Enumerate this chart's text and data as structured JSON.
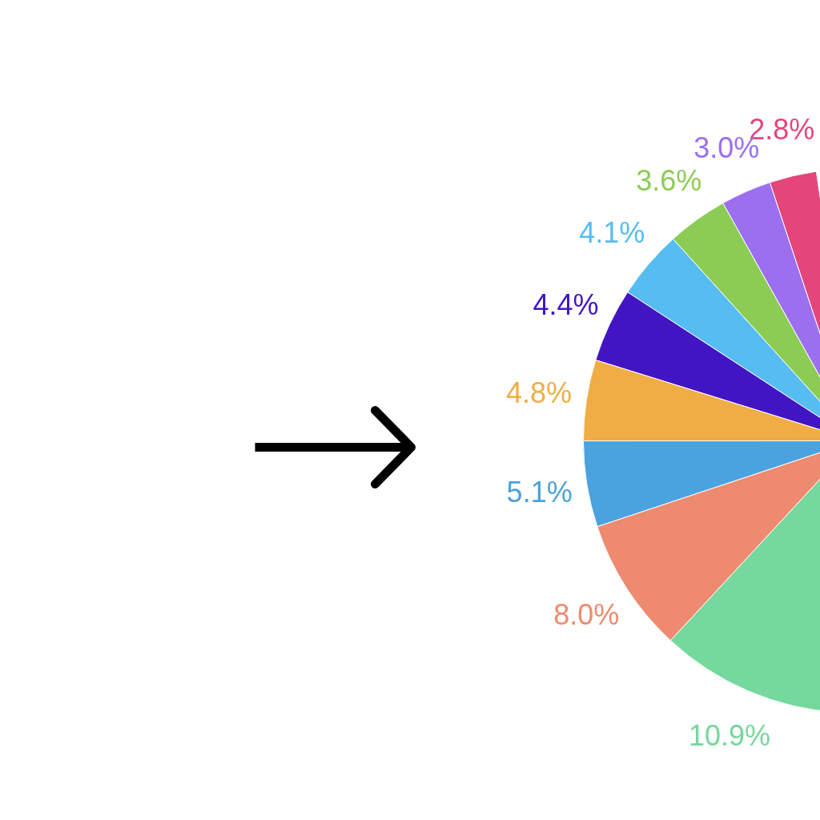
{
  "chart_data": {
    "type": "pie",
    "categories": [
      null,
      null,
      null,
      null,
      null,
      null,
      null,
      null,
      null
    ],
    "values": [
      2.8,
      3.0,
      3.6,
      4.1,
      4.4,
      4.8,
      5.1,
      8.0,
      10.9
    ],
    "colors": [
      "#e4457a",
      "#9b6ff0",
      "#8ccc55",
      "#55bdf2",
      "#4215c4",
      "#f0ad45",
      "#4aa2de",
      "#ee8a70",
      "#75d89c"
    ],
    "value_labels": [
      "2.8%",
      "3.0%",
      "3.6%",
      "4.1%",
      "4.4%",
      "4.8%",
      "5.1%",
      "8.0%",
      "10.9%"
    ]
  }
}
